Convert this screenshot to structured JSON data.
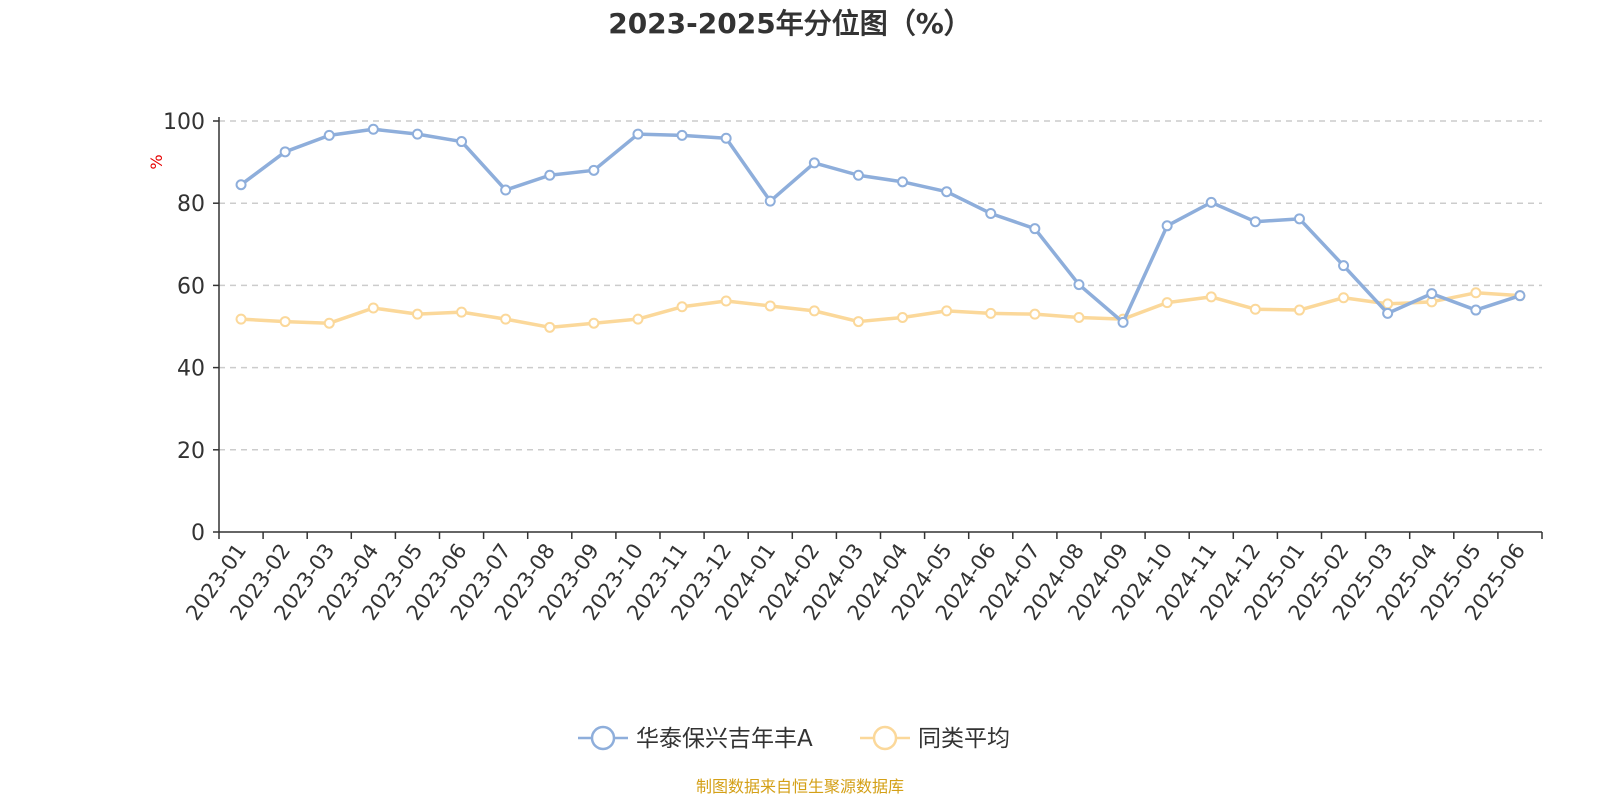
{
  "chart_data": {
    "type": "line",
    "title": "2023-2025年分位图（%）",
    "ylabel": "%",
    "ylim": [
      0,
      100
    ],
    "yticks": [
      "0",
      "20",
      "40",
      "60",
      "80",
      "100"
    ],
    "grid": true,
    "legend_position": "bottom-center",
    "categories": [
      "2023-01",
      "2023-02",
      "2023-03",
      "2023-04",
      "2023-05",
      "2023-06",
      "2023-07",
      "2023-08",
      "2023-09",
      "2023-10",
      "2023-11",
      "2023-12",
      "2024-01",
      "2024-02",
      "2024-03",
      "2024-04",
      "2024-05",
      "2024-06",
      "2024-07",
      "2024-08",
      "2024-09",
      "2024-10",
      "2024-11",
      "2024-12",
      "2025-01",
      "2025-02",
      "2025-03",
      "2025-04",
      "2025-05",
      "2025-06"
    ],
    "series": [
      {
        "name": "华泰保兴吉年丰A",
        "color": "#8eaedb",
        "values": [
          84.5,
          92.5,
          96.5,
          98.0,
          96.8,
          95.0,
          83.2,
          86.8,
          88.0,
          96.8,
          96.5,
          95.8,
          80.5,
          89.8,
          86.8,
          85.2,
          82.8,
          77.5,
          73.8,
          60.2,
          51.0,
          74.5,
          80.2,
          75.5,
          76.2,
          64.8,
          53.2,
          58.0,
          54.0,
          57.5
        ]
      },
      {
        "name": "同类平均",
        "color": "#fbd89a",
        "values": [
          51.8,
          51.2,
          50.8,
          54.5,
          53.0,
          53.5,
          51.8,
          49.8,
          50.8,
          51.8,
          54.8,
          56.2,
          55.0,
          53.8,
          51.2,
          52.2,
          53.8,
          53.2,
          53.0,
          52.2,
          51.8,
          55.8,
          57.2,
          54.2,
          54.0,
          57.0,
          55.5,
          56.0,
          58.2,
          57.5
        ]
      }
    ]
  },
  "source_text": "制图数据来自恒生聚源数据库",
  "colors": {
    "axis": "#333333",
    "grid": "#cccccc",
    "ylabel": "#e60000",
    "source": "#d4a017"
  }
}
